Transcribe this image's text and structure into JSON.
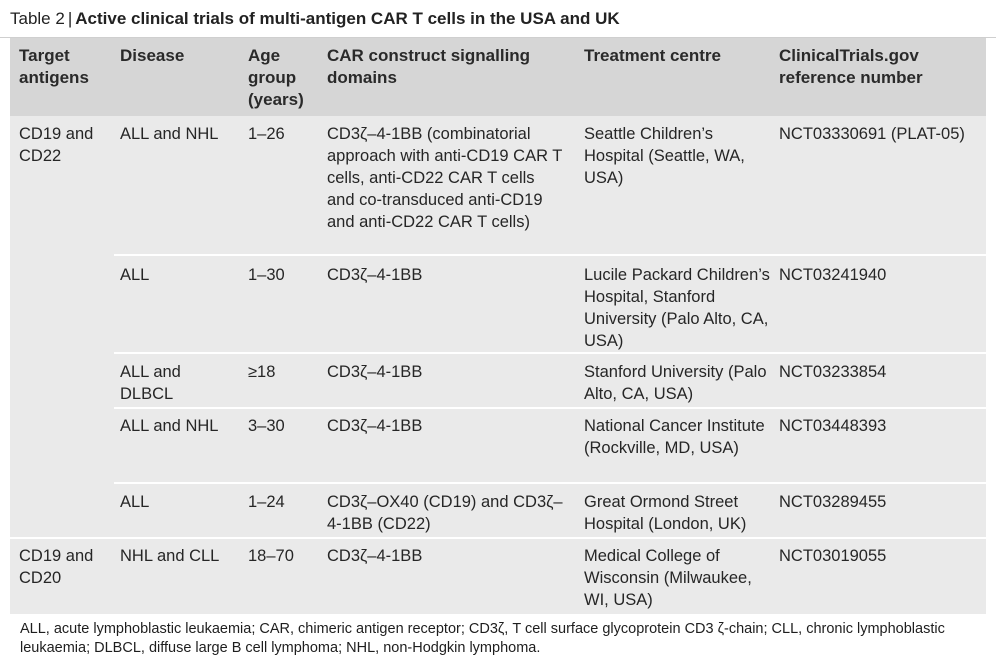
{
  "caption": {
    "label": "Table 2",
    "separator": "|",
    "title": "Active clinical trials of multi-antigen CAR T cells in the USA and UK"
  },
  "headers": {
    "target": "Target antigens",
    "disease": "Disease",
    "age": "Age group (years)",
    "construct": "CAR construct signalling domains",
    "centre": "Treatment centre",
    "ref": "ClinicalTrials.gov reference number"
  },
  "rows": [
    {
      "target": "CD19 and CD22",
      "disease": "ALL and NHL",
      "age": "1–26",
      "construct": "CD3ζ–4-1BB (combinatorial approach with anti-CD19 CAR T cells, anti-CD22 CAR T cells and co-transduced anti-CD19 and anti-CD22 CAR T cells)",
      "centre": "Seattle Children’s Hospital (Seattle, WA, USA)",
      "ref": "NCT03330691 (PLAT-05)"
    },
    {
      "target": "",
      "disease": "ALL",
      "age": "1–30",
      "construct": "CD3ζ–4-1BB",
      "centre": "Lucile Packard Children’s Hospital, Stanford University (Palo Alto, CA, USA)",
      "ref": "NCT03241940"
    },
    {
      "target": "",
      "disease": "ALL and DLBCL",
      "age": "≥18",
      "construct": "CD3ζ–4-1BB",
      "centre": "Stanford University (Palo Alto, CA, USA)",
      "ref": "NCT03233854"
    },
    {
      "target": "",
      "disease": "ALL and NHL",
      "age": "3–30",
      "construct": "CD3ζ–4-1BB",
      "centre": "National Cancer Institute (Rockville, MD, USA)",
      "ref": "NCT03448393"
    },
    {
      "target": "",
      "disease": "ALL",
      "age": "1–24",
      "construct": "CD3ζ–OX40 (CD19) and CD3ζ–4-1BB (CD22)",
      "centre": "Great Ormond Street Hospital (London, UK)",
      "ref": "NCT03289455"
    },
    {
      "target": "CD19 and CD20",
      "disease": "NHL and CLL",
      "age": "18–70",
      "construct": "CD3ζ–4-1BB",
      "centre": "Medical College of Wisconsin (Milwaukee, WI, USA)",
      "ref": "NCT03019055"
    }
  ],
  "footnote": "ALL, acute lymphoblastic leukaemia; CAR, chimeric antigen receptor; CD3ζ, T cell surface glycoprotein CD3 ζ-chain; CLL, chronic lymphoblastic leukaemia; DLBCL, diffuse large B cell lymphoma; NHL, non-Hodgkin lymphoma."
}
